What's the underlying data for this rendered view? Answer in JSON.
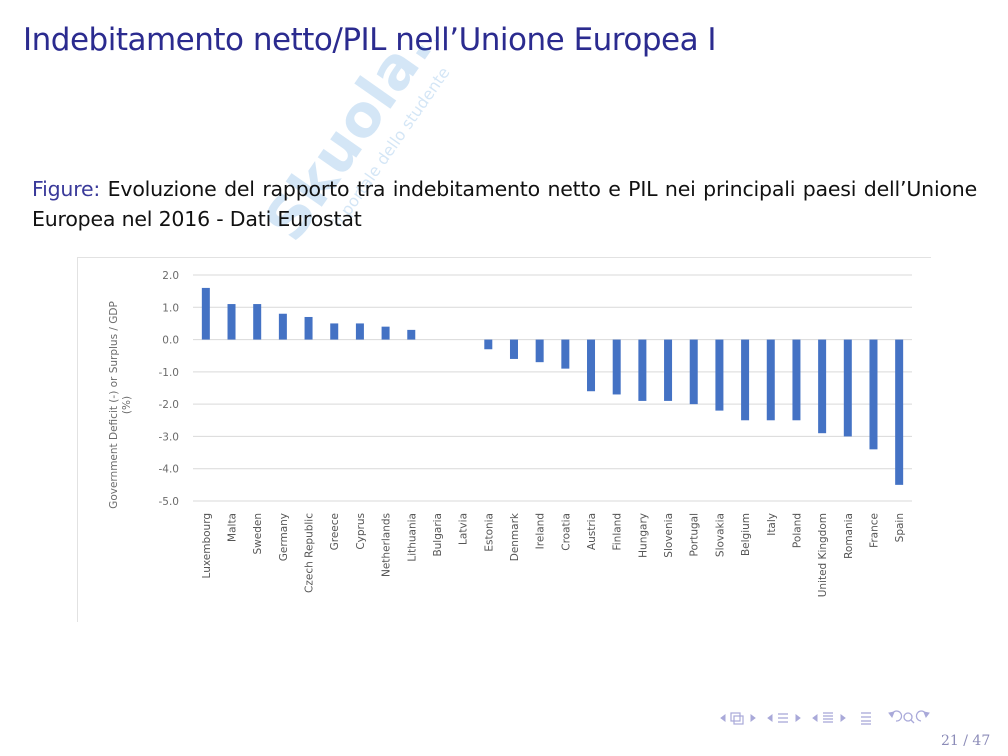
{
  "slide": {
    "title": "Indebitamento netto/PIL nell’Unione Europea I",
    "caption_label": "Figure:",
    "caption_text": "Evoluzione del rapporto tra indebitamento netto e PIL nei principali paesi dell’Unione Europea nel 2016 - Dati Eurostat",
    "watermark_text": "Skuola.net",
    "watermark_sub": "il portale dello studente",
    "page": "21 / 47",
    "colors": {
      "title": "#2b2b8f",
      "bar": "#4472c4",
      "grid": "#d9d9d9"
    }
  },
  "nav": {
    "icons": [
      "arrow-left-icon",
      "frame-icon",
      "arrow-right-icon",
      "arrow-left-icon",
      "section-icon",
      "arrow-right-icon",
      "arrow-left-icon",
      "subsection-icon",
      "arrow-right-icon",
      "align-icon",
      "undo-icon",
      "search-icon",
      "redo-icon"
    ]
  },
  "chart_data": {
    "type": "bar",
    "title": "",
    "xlabel": "",
    "ylabel": "Government Deficit (-) or Surplus / GDP (%)",
    "ylim": [
      -5.0,
      2.0
    ],
    "yticks": [
      "2.0",
      "1.0",
      "0.0",
      "-1.0",
      "-2.0",
      "-3.0",
      "-4.0",
      "-5.0"
    ],
    "ytick_values": [
      2,
      1,
      0,
      -1,
      -2,
      -3,
      -4,
      -5
    ],
    "grid": true,
    "legend": "none",
    "categories": [
      "Luxembourg",
      "Malta",
      "Sweden",
      "Germany",
      "Czech Republic",
      "Greece",
      "Cyprus",
      "Netherlands",
      "Lithuania",
      "Bulgaria",
      "Latvia",
      "Estonia",
      "Denmark",
      "Ireland",
      "Croatia",
      "Austria",
      "Finland",
      "Hungary",
      "Slovenia",
      "Portugal",
      "Slovakia",
      "Belgium",
      "Italy",
      "Poland",
      "United Kingdom",
      "Romania",
      "France",
      "Spain"
    ],
    "values": [
      1.6,
      1.1,
      1.1,
      0.8,
      0.7,
      0.5,
      0.5,
      0.4,
      0.3,
      0.0,
      0.0,
      -0.3,
      -0.6,
      -0.7,
      -0.9,
      -1.6,
      -1.7,
      -1.9,
      -1.9,
      -2.0,
      -2.2,
      -2.5,
      -2.5,
      -2.5,
      -2.9,
      -3.0,
      -3.4,
      -4.5
    ]
  }
}
